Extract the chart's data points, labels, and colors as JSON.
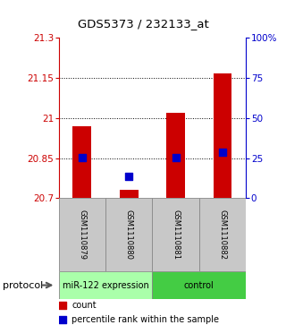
{
  "title": "GDS5373 / 232133_at",
  "samples": [
    "GSM1110879",
    "GSM1110880",
    "GSM1110881",
    "GSM1110882"
  ],
  "groups": [
    {
      "label": "miR-122 expression",
      "color": "#aaffaa",
      "start": 0,
      "end": 1
    },
    {
      "label": "control",
      "color": "#44cc44",
      "start": 2,
      "end": 3
    }
  ],
  "y_min": 20.7,
  "y_max": 21.3,
  "y_ticks_left": [
    20.7,
    20.85,
    21.0,
    21.15,
    21.3
  ],
  "y_tick_labels_left": [
    "20.7",
    "20.85",
    "21",
    "21.15",
    "21.3"
  ],
  "y_ticks_right": [
    0,
    25,
    50,
    75,
    100
  ],
  "y_tick_labels_right": [
    "0",
    "25",
    "50",
    "75",
    "100%"
  ],
  "bar_values": [
    20.97,
    20.73,
    21.02,
    21.165
  ],
  "percentile_values": [
    20.851,
    20.782,
    20.851,
    20.872
  ],
  "bar_color": "#cc0000",
  "percentile_color": "#0000cc",
  "bar_width": 0.4,
  "percentile_size": 35,
  "background_color": "#ffffff",
  "label_area_color": "#c8c8c8",
  "left_axis_color": "#cc0000",
  "right_axis_color": "#0000cc",
  "tick_fontsize": 7.5,
  "title_fontsize": 9.5,
  "sample_fontsize": 6,
  "group_fontsize": 7,
  "legend_fontsize": 7,
  "protocol_fontsize": 8
}
